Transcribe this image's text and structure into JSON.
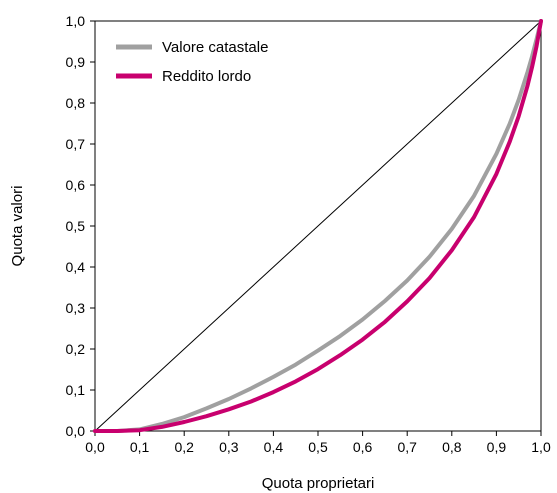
{
  "chart_data": {
    "type": "line",
    "xlabel": "Quota proprietari",
    "ylabel": "Quota valori",
    "xlim": [
      0,
      1
    ],
    "ylim": [
      0,
      1
    ],
    "x_ticks": [
      "0,0",
      "0,1",
      "0,2",
      "0,3",
      "0,4",
      "0,5",
      "0,6",
      "0,7",
      "0,8",
      "0,9",
      "1,0"
    ],
    "y_ticks": [
      "0,0",
      "0,1",
      "0,2",
      "0,3",
      "0,4",
      "0,5",
      "0,6",
      "0,7",
      "0,8",
      "0,9",
      "1,0"
    ],
    "grid": false,
    "legend_position": "top-left",
    "equality_line": {
      "x": [
        0,
        1
      ],
      "y": [
        0,
        1
      ],
      "color": "#000000"
    },
    "series": [
      {
        "name": "Valore catastale",
        "color": "#a0a0a0",
        "x": [
          0.0,
          0.05,
          0.1,
          0.15,
          0.2,
          0.25,
          0.3,
          0.35,
          0.4,
          0.45,
          0.5,
          0.55,
          0.6,
          0.65,
          0.7,
          0.75,
          0.8,
          0.85,
          0.9,
          0.93,
          0.95,
          0.97,
          0.98,
          0.99,
          1.0
        ],
        "y": [
          0.0,
          0.0,
          0.004,
          0.017,
          0.034,
          0.055,
          0.078,
          0.104,
          0.132,
          0.162,
          0.196,
          0.232,
          0.272,
          0.317,
          0.367,
          0.425,
          0.493,
          0.574,
          0.676,
          0.75,
          0.808,
          0.876,
          0.914,
          0.955,
          1.0
        ]
      },
      {
        "name": "Reddito lordo",
        "color": "#c8006e",
        "x": [
          0.0,
          0.05,
          0.1,
          0.15,
          0.2,
          0.25,
          0.3,
          0.35,
          0.4,
          0.45,
          0.5,
          0.55,
          0.6,
          0.65,
          0.7,
          0.75,
          0.8,
          0.85,
          0.9,
          0.93,
          0.95,
          0.97,
          0.98,
          0.99,
          1.0
        ],
        "y": [
          0.0,
          0.0,
          0.002,
          0.01,
          0.022,
          0.036,
          0.053,
          0.072,
          0.095,
          0.121,
          0.151,
          0.185,
          0.223,
          0.266,
          0.316,
          0.373,
          0.441,
          0.522,
          0.627,
          0.706,
          0.768,
          0.843,
          0.888,
          0.938,
          1.0
        ]
      }
    ]
  }
}
